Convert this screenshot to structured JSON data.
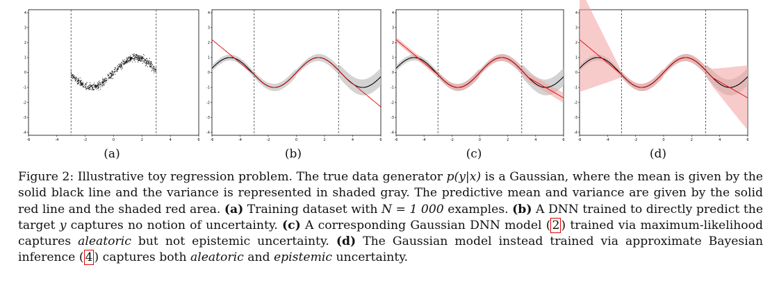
{
  "figure": {
    "panels": [
      {
        "label": "(a)",
        "mode": "training_data"
      },
      {
        "label": "(b)",
        "mode": "dnn"
      },
      {
        "label": "(c)",
        "mode": "aleatoric"
      },
      {
        "label": "(d)",
        "mode": "bayesian"
      }
    ],
    "x_ticks": [
      "-6",
      "-4",
      "-2",
      "0",
      "2",
      "4",
      "6"
    ],
    "y_ticks": [
      "4",
      "3",
      "2",
      "1",
      "0",
      "-1",
      "-2",
      "-3",
      "-4"
    ],
    "colors": {
      "true_mean": "#000000",
      "true_variance": "#c8c8c8",
      "pred_mean": "#e00000",
      "pred_variance": "#f2a0a0",
      "data_points": "#000000"
    }
  },
  "chart_data": [
    {
      "type": "scatter",
      "title": "(a)",
      "xlim": [
        -6,
        6
      ],
      "ylim": [
        -4.2,
        4.2
      ],
      "training_range": [
        -3,
        3
      ],
      "series": [
        {
          "name": "training data",
          "function": "sin(x)",
          "x_range": [
            -3,
            3
          ],
          "n": 1000
        }
      ]
    },
    {
      "type": "line",
      "title": "(b)",
      "xlim": [
        -6,
        6
      ],
      "ylim": [
        -4.2,
        4.2
      ],
      "training_range": [
        -3,
        3
      ],
      "series": [
        {
          "name": "true mean",
          "function": "sin(x)"
        },
        {
          "name": "DNN prediction",
          "left_endpoint": [
            -6,
            2.2
          ],
          "right_endpoint": [
            6,
            -2.3
          ]
        }
      ]
    },
    {
      "type": "line",
      "title": "(c)",
      "xlim": [
        -6,
        6
      ],
      "ylim": [
        -4.2,
        4.2
      ],
      "training_range": [
        -3,
        3
      ],
      "series": [
        {
          "name": "true mean",
          "function": "sin(x)"
        },
        {
          "name": "Gaussian DNN mean",
          "left_endpoint": [
            -6,
            2.2
          ],
          "right_endpoint": [
            6,
            -1.7
          ]
        }
      ]
    },
    {
      "type": "line",
      "title": "(d)",
      "xlim": [
        -6,
        6
      ],
      "ylim": [
        -4.2,
        4.2
      ],
      "training_range": [
        -3,
        3
      ],
      "series": [
        {
          "name": "true mean",
          "function": "sin(x)"
        },
        {
          "name": "Bayesian mean",
          "left_endpoint": [
            -6,
            2.2
          ],
          "right_endpoint": [
            6,
            -1.7
          ]
        }
      ]
    }
  ],
  "caption": {
    "fig_label": "Figure 2:",
    "t1": " Illustrative toy regression problem. The true data generator ",
    "math_pyx": "p(y|x)",
    "t2": " is a Gaussian, where the mean is given by the solid black line and the variance is represented in shaded gray. The predictive mean and variance are given by the solid red line and the shaded red area. ",
    "a": "(a)",
    "t3": " Training dataset with ",
    "math_n": "N = 1 000",
    "t4": " examples. ",
    "b": "(b)",
    "t5": " A DNN trained to directly predict the target ",
    "math_y": "y",
    "t6": " captures no notion of uncertainty. ",
    "c": "(c)",
    "t7": " A corresponding Gaussian DNN model ",
    "ref1": "2",
    "t8": " trained via maximum-likelihood captures ",
    "aleatoric1": "aleatoric",
    "t9": " but not epistemic uncertainty. ",
    "d": "(d)",
    "t10": " The Gaussian model instead trained via approximate Bayesian inference ",
    "ref2": "4",
    "t11": " captures both ",
    "aleatoric2": "aleatoric",
    "t12": " and ",
    "epistemic": "epistemic",
    "t13": " uncertainty."
  }
}
